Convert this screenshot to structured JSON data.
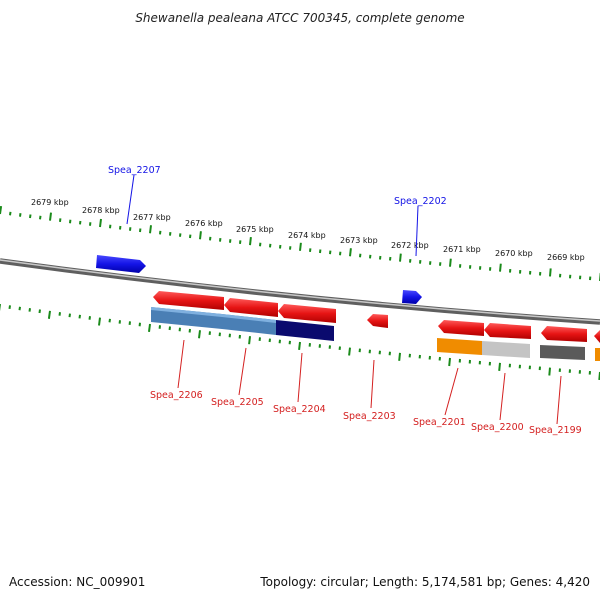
{
  "title": "Shewanella pealeana ATCC 700345, complete genome",
  "footer": {
    "accession": "Accession: NC_009901",
    "summary": "Topology: circular; Length: 5,174,581 bp; Genes: 4,420"
  },
  "colors": {
    "forward_gene": "#1414e6",
    "reverse_gene": "#e61414",
    "tick": "#1a8a1a",
    "backbone": "#8c8c8c",
    "cog_steelblue": "#4a7fb5",
    "cog_navy": "#0a0a6e",
    "cog_orange": "#f08c00",
    "cog_lightgray": "#c4c4c4",
    "cog_darkgray": "#5a5a5a"
  },
  "scale_labels": [
    "2679 kbp",
    "2678 kbp",
    "2677 kbp",
    "2676 kbp",
    "2675 kbp",
    "2674 kbp",
    "2673 kbp",
    "2672 kbp",
    "2671 kbp",
    "2670 kbp",
    "2669 kbp"
  ],
  "forward_gene_labels": [
    "Spea_2207",
    "Spea_2202"
  ],
  "reverse_gene_labels": [
    "Spea_2206",
    "Spea_2205",
    "Spea_2204",
    "Spea_2203",
    "Spea_2201",
    "Spea_2200",
    "Spea_2199"
  ]
}
